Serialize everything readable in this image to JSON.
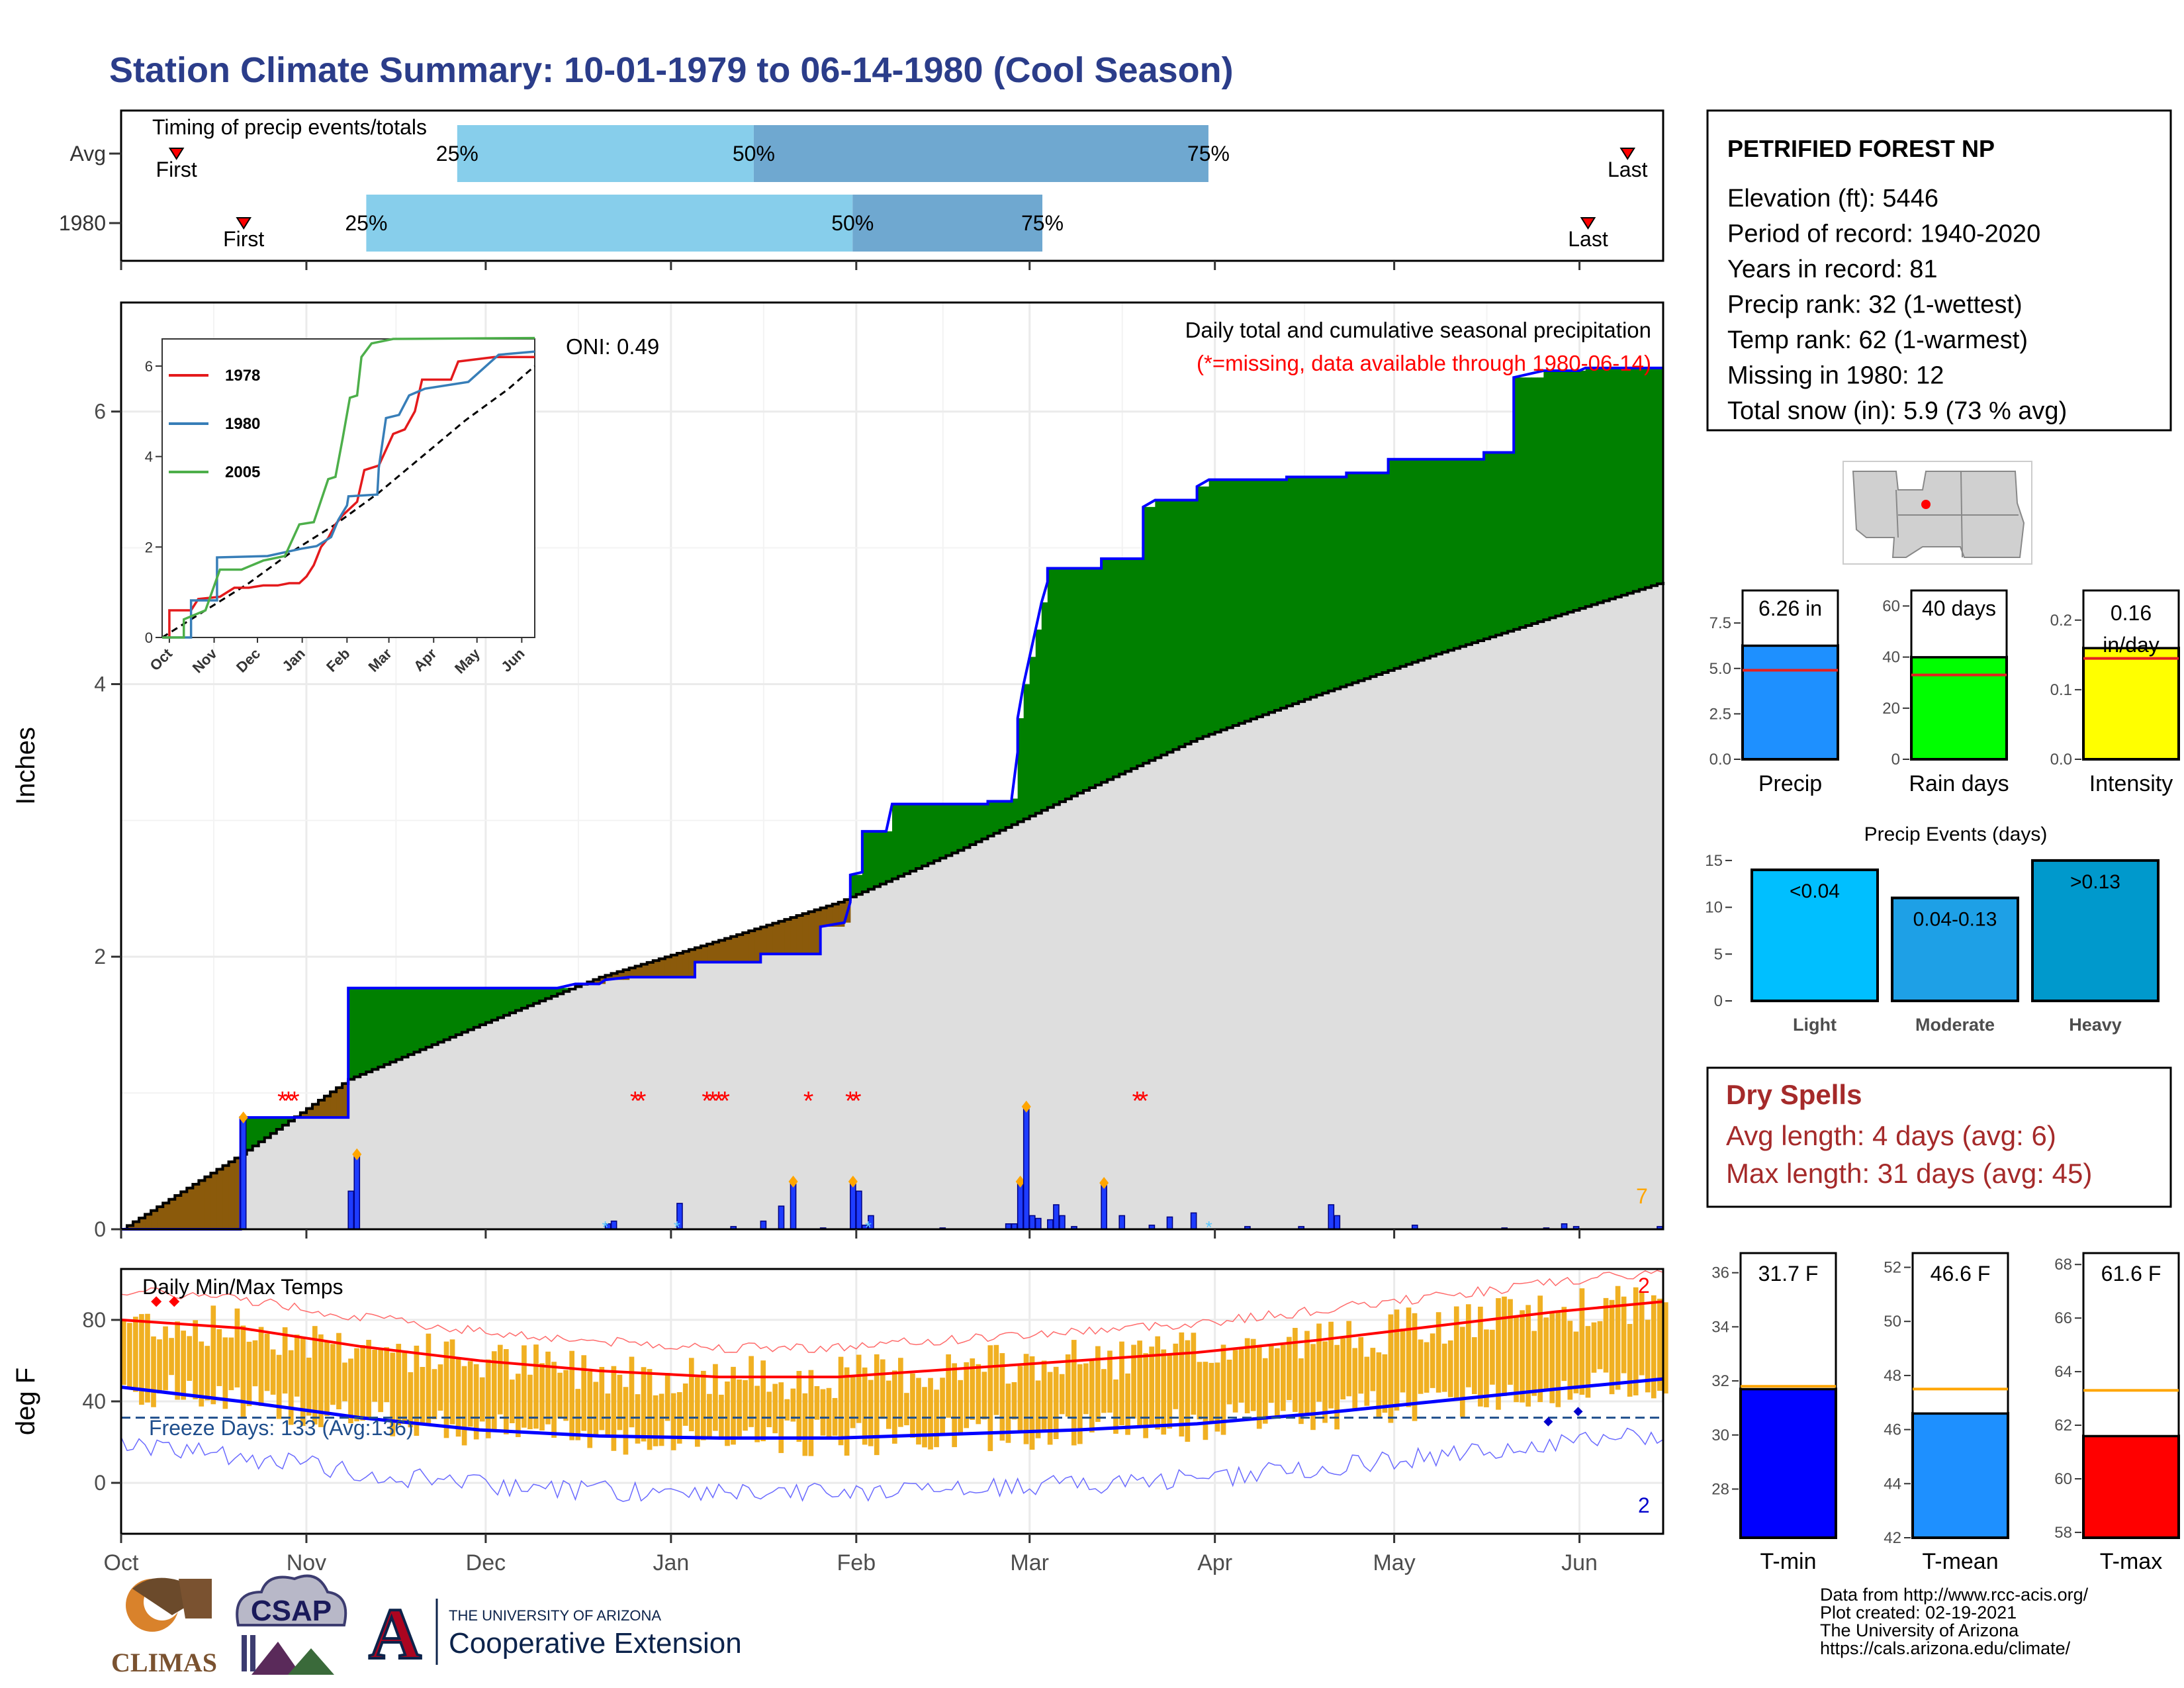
{
  "title": "Station Climate Summary: 10-01-1979 to 06-14-1980 (Cool Season)",
  "months": [
    "Oct",
    "Nov",
    "Dec",
    "Jan",
    "Feb",
    "Mar",
    "Apr",
    "May",
    "Jun"
  ],
  "timing": {
    "title": "Timing of precip events/totals",
    "rows": [
      {
        "label": "Avg",
        "first": "First",
        "last": "Last",
        "first_day": 14,
        "p25_day": 85,
        "p50_day": 160,
        "p75_day": 275,
        "last_day": 381,
        "p25_label": "25%",
        "p50_label": "50%",
        "p75_label": "75%"
      },
      {
        "label": "1980",
        "first": "First",
        "last": "Last",
        "first_day": 31,
        "p25_day": 62,
        "p50_day": 185,
        "p75_day": 233,
        "last_day": 371,
        "p25_label": "25%",
        "p50_label": "50%",
        "p75_label": "75%"
      }
    ]
  },
  "station": {
    "name": "PETRIFIED FOREST NP",
    "lines": [
      "Elevation (ft): 5446",
      "Period of record: 1940-2020",
      "Years in record: 81",
      "Precip rank: 32 (1-wettest)",
      "Temp rank: 62 (1-warmest)",
      "Missing in 1980: 12",
      "Total snow (in): 5.9 (73 % avg)"
    ]
  },
  "precip_panel": {
    "ylabel": "Inches",
    "yticks": [
      "0",
      "2",
      "4",
      "6"
    ],
    "note1": "Daily total and cumulative seasonal precipitation",
    "note2": "(*=missing, data available through 1980-06-14)",
    "oni": "ONI: 0.49",
    "corner_num": "7"
  },
  "inset": {
    "yticks": [
      "0",
      "2",
      "4",
      "6"
    ],
    "xticks": [
      "Oct",
      "Nov",
      "Dec",
      "Jan",
      "Feb",
      "Mar",
      "Apr",
      "May",
      "Jun"
    ],
    "legend": [
      {
        "name": "1978",
        "color": "#e41a1c"
      },
      {
        "name": "1980",
        "color": "#377eb8"
      },
      {
        "name": "2005",
        "color": "#4daf4a"
      }
    ]
  },
  "temp_panel": {
    "ylabel": "deg F",
    "yticks": [
      "0",
      "40",
      "80"
    ],
    "title": "Daily Min/Max Temps",
    "freeze": "Freeze Days: 133 (Avg:136)",
    "top_num": "2",
    "bottom_num": "2"
  },
  "small_bars": {
    "precip": {
      "label": "Precip",
      "value_label": "6.26 in",
      "yticks": [
        "0.0",
        "2.5",
        "5.0",
        "7.5"
      ],
      "color": "#1e90ff"
    },
    "rain": {
      "label": "Rain days",
      "value_label": "40 days",
      "yticks": [
        "0",
        "20",
        "40",
        "60"
      ],
      "color": "#00ff00"
    },
    "intensity": {
      "label": "Intensity",
      "value_label_1": "0.16",
      "value_label_2": "in/day",
      "yticks": [
        "0.0",
        "0.1",
        "0.2"
      ],
      "color": "#ffff00"
    }
  },
  "events": {
    "title": "Precip Events (days)",
    "yticks": [
      "0",
      "5",
      "10",
      "15"
    ],
    "bars": [
      {
        "cat": "Light",
        "label": "<0.04",
        "color": "#00bfff"
      },
      {
        "cat": "Moderate",
        "label": "0.04-0.13",
        "color": "#1ea0e6"
      },
      {
        "cat": "Heavy",
        "label": ">0.13",
        "color": "#0099cc"
      }
    ]
  },
  "dry": {
    "title": "Dry Spells",
    "line1": "Avg length: 4 days (avg: 6)",
    "line2": "Max length: 31 days (avg: 45)"
  },
  "temp_bars": {
    "tmin": {
      "label": "T-min",
      "value_label": "31.7 F",
      "yticks": [
        "28",
        "30",
        "32",
        "34",
        "36"
      ],
      "color": "#0000ff"
    },
    "tmean": {
      "label": "T-mean",
      "value_label": "46.6 F",
      "yticks": [
        "42",
        "44",
        "46",
        "48",
        "50",
        "52"
      ],
      "color": "#1e90ff"
    },
    "tmax": {
      "label": "T-max",
      "value_label": "61.6 F",
      "yticks": [
        "58",
        "60",
        "62",
        "64",
        "66",
        "68"
      ],
      "color": "#ff0000"
    }
  },
  "footer": {
    "lines": [
      "Data from http://www.rcc-acis.org/",
      "Plot created: 02-19-2021",
      "The University of Arizona",
      "https://cals.arizona.edu/climate/"
    ],
    "climas": "CLIMAS",
    "csap": "CSAP",
    "ua_small": "THE UNIVERSITY OF ARIZONA",
    "ua_big": "Cooperative Extension",
    "ua_letter": "A"
  },
  "chart_data": [
    {
      "type": "area",
      "title": "Daily total and cumulative seasonal precipitation",
      "ylabel": "Inches",
      "ylim": [
        0,
        6.8
      ],
      "xlim_days": [
        0,
        258
      ],
      "cumulative_1980": [
        [
          0,
          0
        ],
        [
          20,
          0
        ],
        [
          20,
          0.82
        ],
        [
          28,
          0.82
        ],
        [
          38,
          0.82
        ],
        [
          38,
          1.77
        ],
        [
          73,
          1.77
        ],
        [
          76,
          1.8
        ],
        [
          80,
          1.8
        ],
        [
          81,
          1.83
        ],
        [
          85,
          1.85
        ],
        [
          96,
          1.85
        ],
        [
          96,
          1.96
        ],
        [
          107,
          1.96
        ],
        [
          107,
          2.02
        ],
        [
          117,
          2.02
        ],
        [
          117,
          2.22
        ],
        [
          121,
          2.25
        ],
        [
          122,
          2.4
        ],
        [
          122,
          2.6
        ],
        [
          124,
          2.62
        ],
        [
          124,
          2.92
        ],
        [
          128,
          2.92
        ],
        [
          129,
          3.12
        ],
        [
          140,
          3.12
        ],
        [
          145,
          3.12
        ],
        [
          145,
          3.14
        ],
        [
          149,
          3.14
        ],
        [
          149,
          3.16
        ],
        [
          150,
          3.5
        ],
        [
          150,
          3.75
        ],
        [
          151,
          4.0
        ],
        [
          152,
          4.2
        ],
        [
          153,
          4.4
        ],
        [
          154,
          4.6
        ],
        [
          155,
          4.75
        ],
        [
          155,
          4.85
        ],
        [
          164,
          4.85
        ],
        [
          164,
          4.92
        ],
        [
          171,
          4.92
        ],
        [
          171,
          5.3
        ],
        [
          173,
          5.35
        ],
        [
          180,
          5.35
        ],
        [
          180,
          5.45
        ],
        [
          182,
          5.5
        ],
        [
          195,
          5.5
        ],
        [
          195,
          5.52
        ],
        [
          205,
          5.52
        ],
        [
          205,
          5.55
        ],
        [
          212,
          5.55
        ],
        [
          212,
          5.65
        ],
        [
          228,
          5.65
        ],
        [
          228,
          5.7
        ],
        [
          233,
          5.7
        ],
        [
          233,
          6.25
        ],
        [
          238,
          6.3
        ],
        [
          244,
          6.3
        ],
        [
          245,
          6.32
        ],
        [
          258,
          6.32
        ]
      ],
      "average_cumulative": [
        [
          0,
          0
        ],
        [
          20,
          0.55
        ],
        [
          38,
          1.1
        ],
        [
          60,
          1.5
        ],
        [
          80,
          1.85
        ],
        [
          100,
          2.12
        ],
        [
          120,
          2.4
        ],
        [
          140,
          2.78
        ],
        [
          160,
          3.2
        ],
        [
          180,
          3.6
        ],
        [
          200,
          3.92
        ],
        [
          220,
          4.22
        ],
        [
          240,
          4.5
        ],
        [
          258,
          4.75
        ]
      ],
      "daily_precip": [
        [
          20,
          0.82
        ],
        [
          38,
          0.28
        ],
        [
          39,
          0.55
        ],
        [
          81,
          0.04
        ],
        [
          82,
          0.06
        ],
        [
          93,
          0.19
        ],
        [
          102,
          0.02
        ],
        [
          107,
          0.06
        ],
        [
          110,
          0.17
        ],
        [
          112,
          0.35
        ],
        [
          117,
          0.01
        ],
        [
          122,
          0.35
        ],
        [
          123,
          0.28
        ],
        [
          124,
          0.03
        ],
        [
          125,
          0.1
        ],
        [
          137,
          0.01
        ],
        [
          148,
          0.04
        ],
        [
          149,
          0.04
        ],
        [
          150,
          0.35
        ],
        [
          151,
          0.9
        ],
        [
          152,
          0.1
        ],
        [
          153,
          0.08
        ],
        [
          155,
          0.07
        ],
        [
          156,
          0.18
        ],
        [
          157,
          0.1
        ],
        [
          159,
          0.02
        ],
        [
          164,
          0.34
        ],
        [
          167,
          0.1
        ],
        [
          172,
          0.03
        ],
        [
          175,
          0.09
        ],
        [
          179,
          0.12
        ],
        [
          188,
          0.02
        ],
        [
          197,
          0.02
        ],
        [
          202,
          0.18
        ],
        [
          203,
          0.1
        ],
        [
          216,
          0.03
        ],
        [
          231,
          0.01
        ],
        [
          238,
          0.01
        ],
        [
          241,
          0.04
        ],
        [
          243,
          0.02
        ],
        [
          257,
          0.02
        ]
      ],
      "missing_days": [
        27,
        28,
        29,
        86,
        87,
        98,
        99,
        100,
        101,
        115,
        122,
        123,
        170,
        171
      ],
      "oni": 0.49
    },
    {
      "type": "line",
      "title": "Daily Min/Max Temps",
      "ylabel": "deg F",
      "ylim": [
        -25,
        105
      ],
      "tmax_avg": [
        [
          0,
          80
        ],
        [
          20,
          76
        ],
        [
          40,
          67
        ],
        [
          60,
          60
        ],
        [
          80,
          55
        ],
        [
          100,
          52
        ],
        [
          120,
          52
        ],
        [
          140,
          56
        ],
        [
          160,
          60
        ],
        [
          180,
          64
        ],
        [
          200,
          70
        ],
        [
          220,
          77
        ],
        [
          240,
          84
        ],
        [
          258,
          89
        ]
      ],
      "tmin_avg": [
        [
          0,
          47
        ],
        [
          20,
          40
        ],
        [
          40,
          32
        ],
        [
          60,
          26
        ],
        [
          80,
          23
        ],
        [
          100,
          22
        ],
        [
          120,
          22
        ],
        [
          140,
          24
        ],
        [
          160,
          26
        ],
        [
          180,
          29
        ],
        [
          200,
          34
        ],
        [
          220,
          40
        ],
        [
          240,
          46
        ],
        [
          258,
          51
        ]
      ],
      "freeze_line": 32,
      "freeze_days": 133,
      "freeze_days_avg": 136
    },
    {
      "type": "bar",
      "categories": [
        "Precip",
        "Rain days",
        "Intensity"
      ],
      "values": [
        6.26,
        40,
        0.16
      ],
      "averages": [
        4.9,
        33,
        0.145
      ]
    },
    {
      "type": "bar",
      "title": "Precip Events (days)",
      "categories": [
        "Light",
        "Moderate",
        "Heavy"
      ],
      "labels": [
        "<0.04",
        "0.04-0.13",
        ">0.13"
      ],
      "values": [
        14,
        11,
        15
      ],
      "ylim": [
        0,
        15.7
      ]
    },
    {
      "type": "bar",
      "categories": [
        "T-min",
        "T-mean",
        "T-max"
      ],
      "values": [
        31.7,
        46.6,
        61.6
      ],
      "averages": [
        31.8,
        47.5,
        63.3
      ]
    }
  ]
}
